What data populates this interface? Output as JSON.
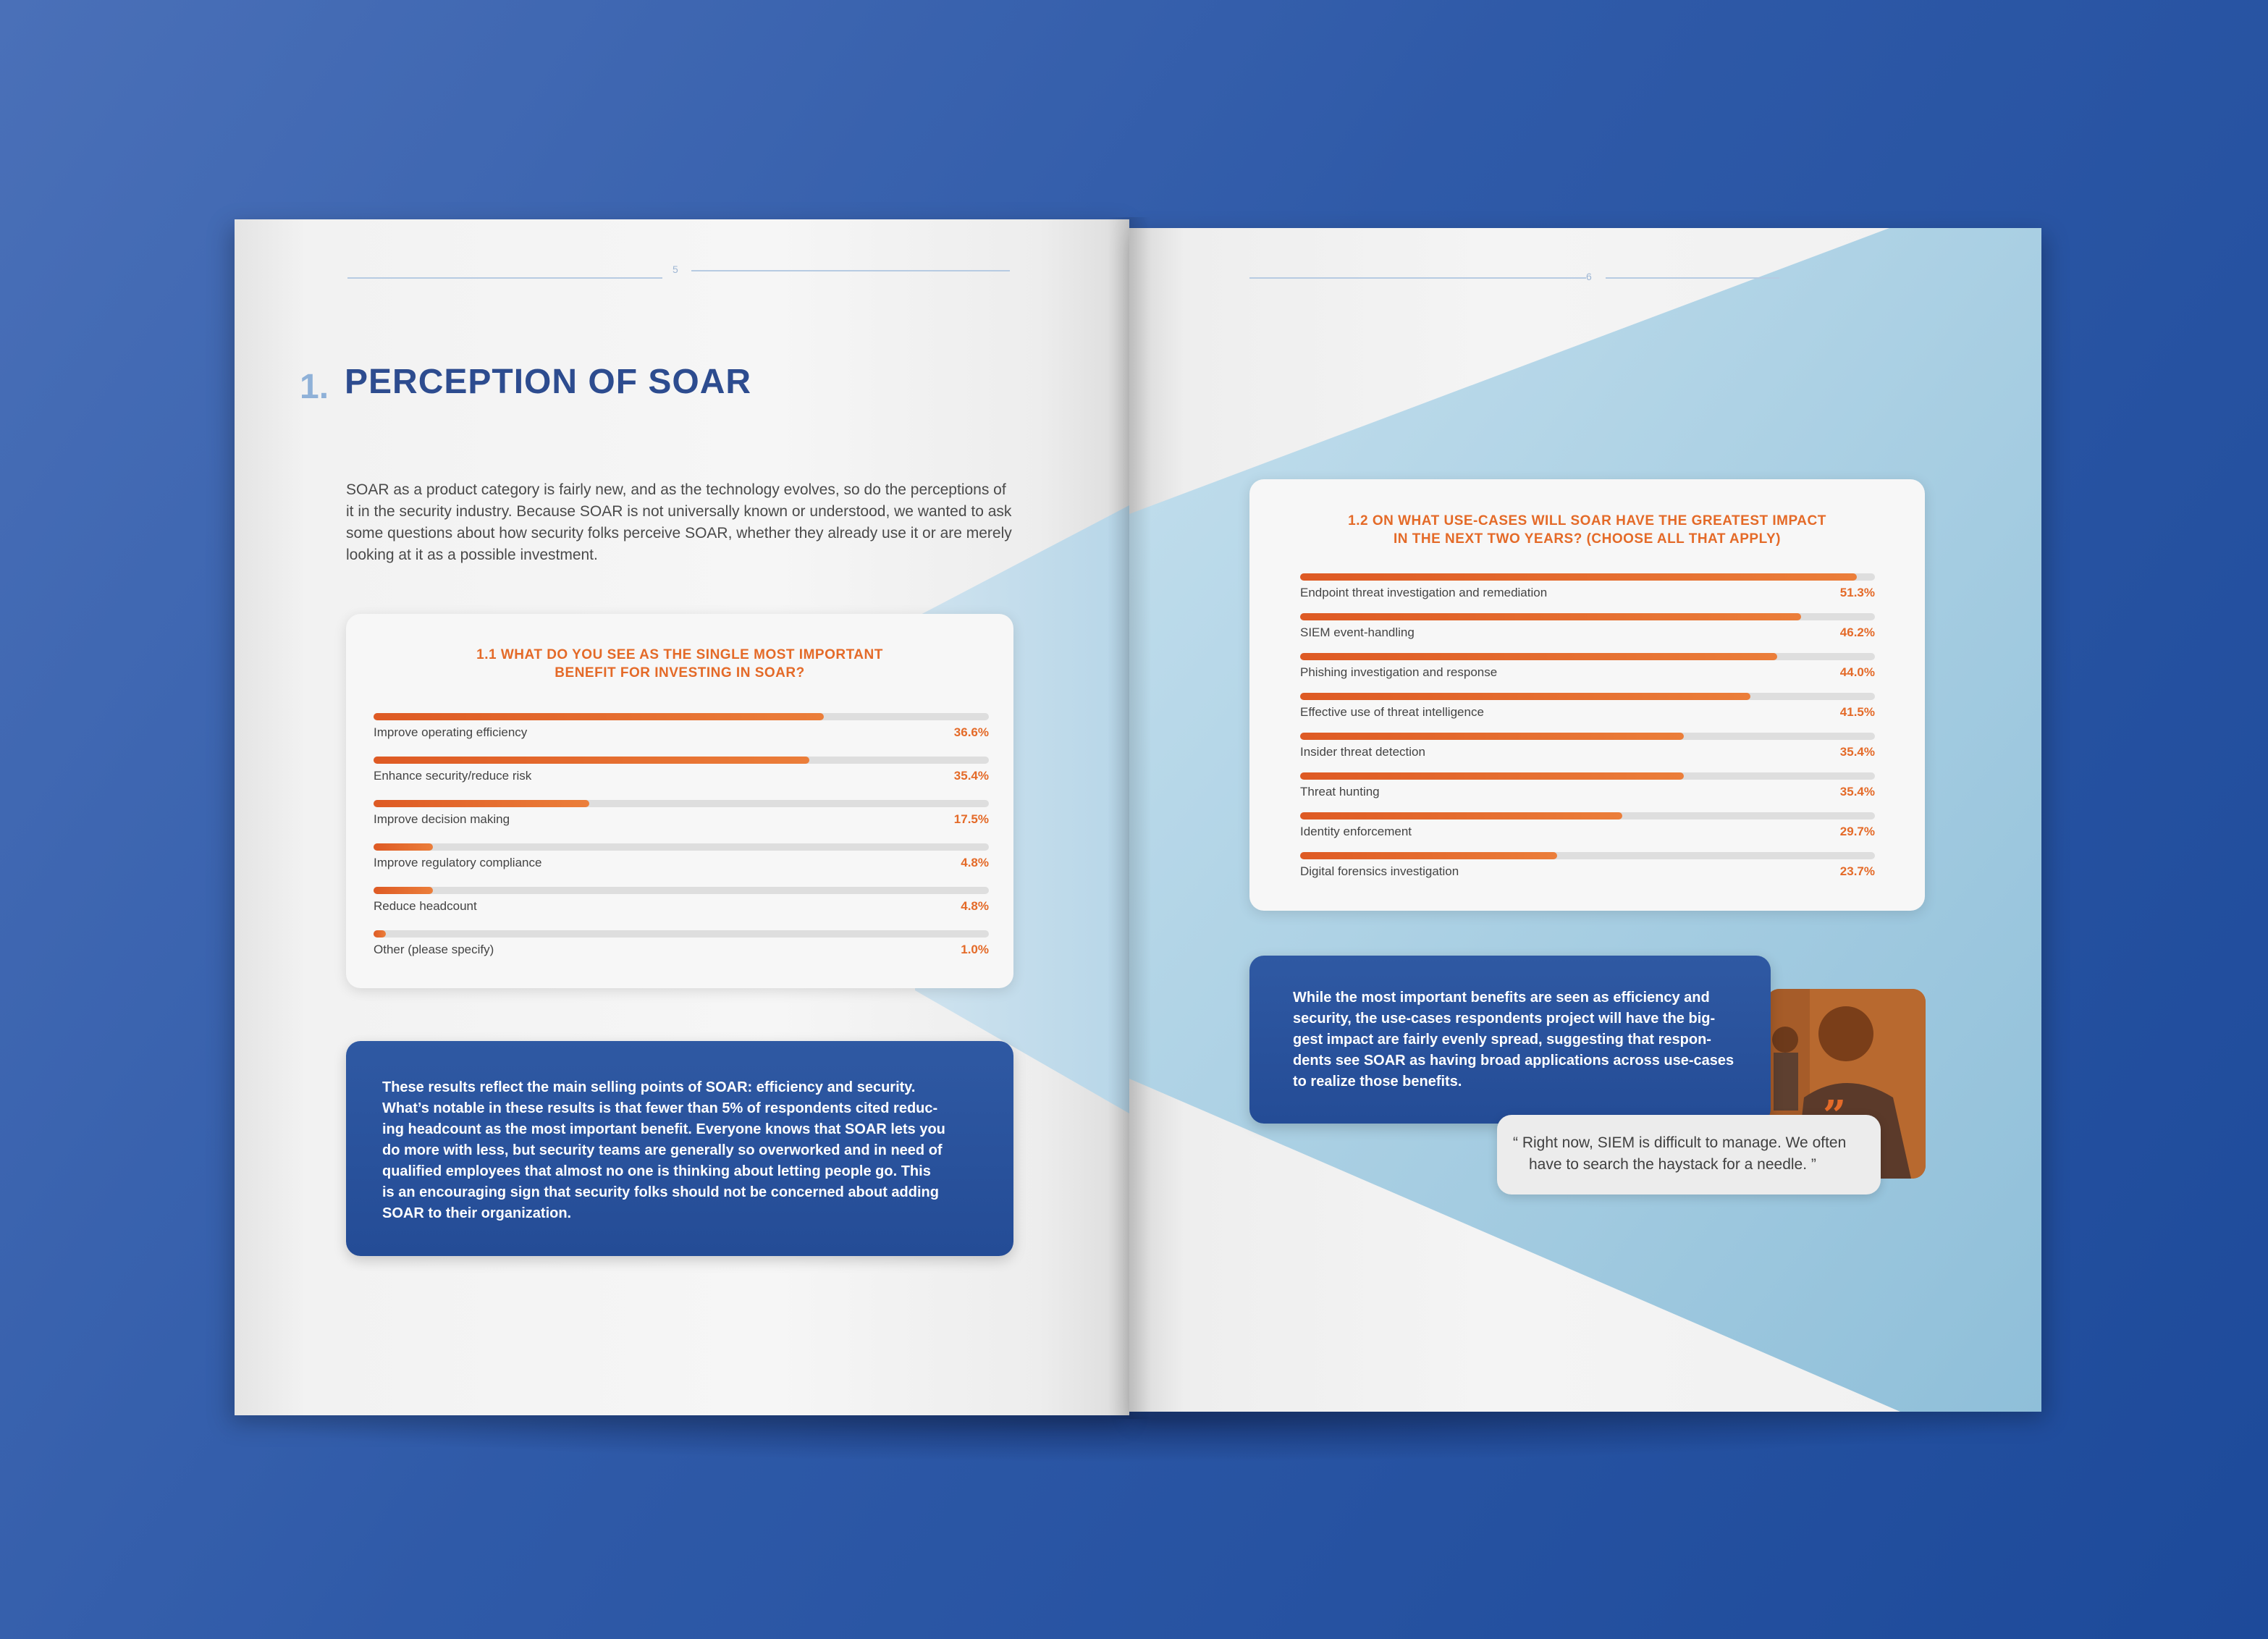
{
  "left_page": {
    "page_number": "5",
    "section_number": "1.",
    "section_title": "PERCEPTION OF SOAR",
    "intro_lines": [
      "SOAR as a product category is fairly new, and as the technology evolves, so do the perceptions of",
      "it in the security industry. Because SOAR is not universally known or understood, we wanted to ask",
      "some questions about how security folks perceive SOAR, whether they already use it or are merely",
      "looking at it as a possible investment."
    ],
    "summary_lines": [
      "These results reflect the main selling points of SOAR: efficiency and security.",
      "What’s notable in these results is that fewer than 5% of respondents cited reduc-",
      "ing headcount as the most important benefit. Everyone knows that SOAR lets you",
      "do more with less, but security teams are generally so overworked and in need of",
      "qualified employees that almost no one is thinking about letting people go. This",
      "is an encouraging sign that security folks should not be concerned about adding",
      "SOAR to their organization."
    ]
  },
  "right_page": {
    "page_number": "6",
    "summary_lines": [
      "While the most important benefits are seen as efficiency and",
      "security, the use-cases respondents project will have the big-",
      "gest impact are fairly evenly spread, suggesting that respon-",
      "dents see SOAR as having broad applications across use-cases",
      "to realize those benefits."
    ],
    "quote_lines": [
      "“ Right now, SIEM is difficult to manage. We often",
      "have to search the haystack for a needle. ”"
    ],
    "quote_mark": "”"
  },
  "chart_data": [
    {
      "type": "bar",
      "title_lines": [
        "1.1 WHAT DO YOU SEE AS THE SINGLE MOST IMPORTANT",
        "BENEFIT FOR INVESTING IN SOAR?"
      ],
      "categories": [
        "Improve operating efficiency",
        "Enhance security/reduce risk",
        "Improve decision making",
        "Improve regulatory compliance",
        "Reduce headcount",
        "Other (please specify)"
      ],
      "values": [
        36.6,
        35.4,
        17.5,
        4.8,
        4.8,
        1.0
      ],
      "value_labels": [
        "36.6%",
        "35.4%",
        "17.5%",
        "4.8%",
        "4.8%",
        "1.0%"
      ],
      "xlim": [
        0,
        50
      ],
      "bar_color": "#e46a28",
      "track_color": "#dedede"
    },
    {
      "type": "bar",
      "title_lines": [
        "1.2 ON WHAT USE-CASES WILL SOAR HAVE THE GREATEST IMPACT",
        "IN THE NEXT TWO YEARS? (CHOOSE ALL THAT APPLY)"
      ],
      "categories": [
        "Endpoint threat investigation and remediation",
        "SIEM event-handling",
        "Phishing investigation and response",
        "Effective use of threat intelligence",
        "Insider threat detection",
        "Threat hunting",
        "Identity enforcement",
        "Digital forensics investigation"
      ],
      "values": [
        51.3,
        46.2,
        44.0,
        41.5,
        35.4,
        35.4,
        29.7,
        23.7
      ],
      "value_labels": [
        "51.3%",
        "46.2%",
        "44.0%",
        "41.5%",
        "35.4%",
        "35.4%",
        "29.7%",
        "23.7%"
      ],
      "xlim": [
        0,
        53
      ],
      "bar_color": "#e46a28",
      "track_color": "#dedede"
    }
  ],
  "colors": {
    "background": "#2f5aa8",
    "accent_orange": "#e46a28",
    "title_blue": "#2d4c8f",
    "box_blue": "#244c96",
    "wedge_light_blue": "#a9cfe3"
  }
}
